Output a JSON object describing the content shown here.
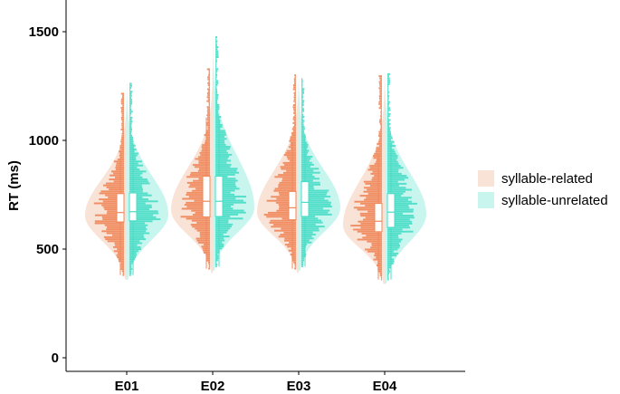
{
  "chart_data": {
    "type": "violin",
    "categories": [
      "E01",
      "E02",
      "E03",
      "E04"
    ],
    "ylabel": "RT (ms)",
    "xlabel": "",
    "ylim": [
      0,
      1550
    ],
    "yticks": [
      0,
      500,
      1000,
      1500
    ],
    "grid": false,
    "legend_position": "right",
    "series": [
      {
        "name": "syllable-related",
        "fill": "#f9e2d6",
        "dots": "#f0885a",
        "box_color": "#f0885a",
        "stats": [
          {
            "min": 380,
            "q1": 625,
            "median": 668,
            "q3": 755,
            "max": 980,
            "mode": 655,
            "extreme_max": 1215
          },
          {
            "min": 410,
            "q1": 648,
            "median": 720,
            "q3": 835,
            "max": 1105,
            "mode": 680,
            "extreme_max": 1330
          },
          {
            "min": 410,
            "q1": 635,
            "median": 690,
            "q3": 765,
            "max": 990,
            "mode": 670,
            "extreme_max": 1305
          },
          {
            "min": 360,
            "q1": 580,
            "median": 628,
            "q3": 710,
            "max": 940,
            "mode": 610,
            "extreme_max": 1295
          }
        ]
      },
      {
        "name": "syllable-unrelated",
        "fill": "#c9f5ef",
        "dots": "#49dcc6",
        "box_color": "#49dcc6",
        "stats": [
          {
            "min": 380,
            "q1": 630,
            "median": 672,
            "q3": 758,
            "max": 985,
            "mode": 660,
            "extreme_max": 1265
          },
          {
            "min": 420,
            "q1": 650,
            "median": 720,
            "q3": 835,
            "max": 1110,
            "mode": 690,
            "extreme_max": 1475
          },
          {
            "min": 420,
            "q1": 650,
            "median": 715,
            "q3": 810,
            "max": 1020,
            "mode": 690,
            "extreme_max": 1285
          },
          {
            "min": 360,
            "q1": 600,
            "median": 670,
            "q3": 755,
            "max": 980,
            "mode": 660,
            "extreme_max": 1310
          }
        ]
      }
    ]
  }
}
